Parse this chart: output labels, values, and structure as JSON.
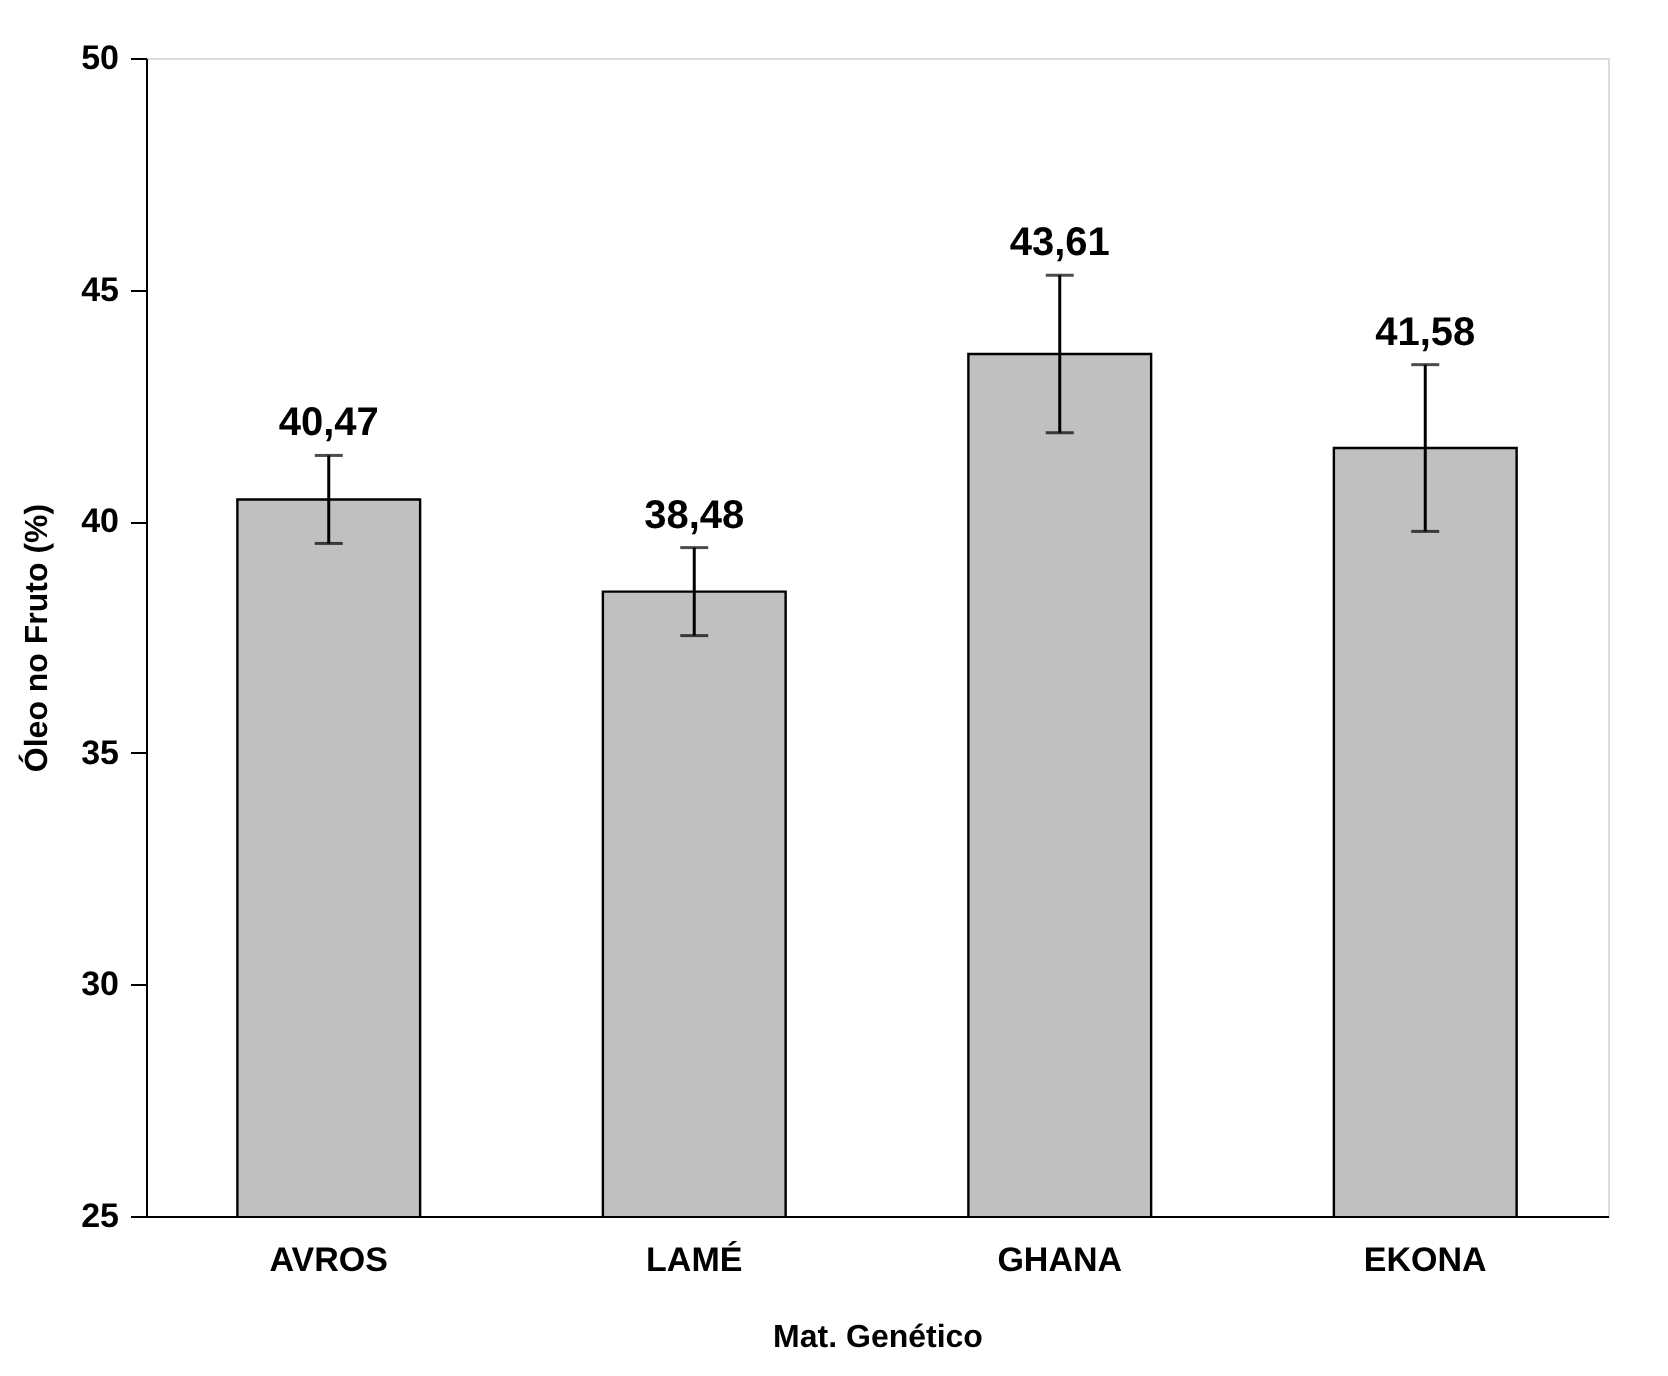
{
  "chart_data": {
    "type": "bar",
    "xlabel": "Mat. Genético",
    "ylabel": "Óleo no Fruto (%)",
    "categories": [
      "AVROS",
      "LAMÉ",
      "GHANA",
      "EKONA"
    ],
    "values": [
      40.47,
      38.48,
      43.61,
      41.58
    ],
    "errors": [
      0.95,
      0.95,
      1.7,
      1.8
    ],
    "value_labels": [
      "40,47",
      "38,48",
      "43,61",
      "41,58"
    ],
    "color": "#c0c0c0",
    "ylim": [
      25,
      50
    ],
    "yticks": [
      25,
      30,
      35,
      40,
      45,
      50
    ],
    "grid": false
  }
}
